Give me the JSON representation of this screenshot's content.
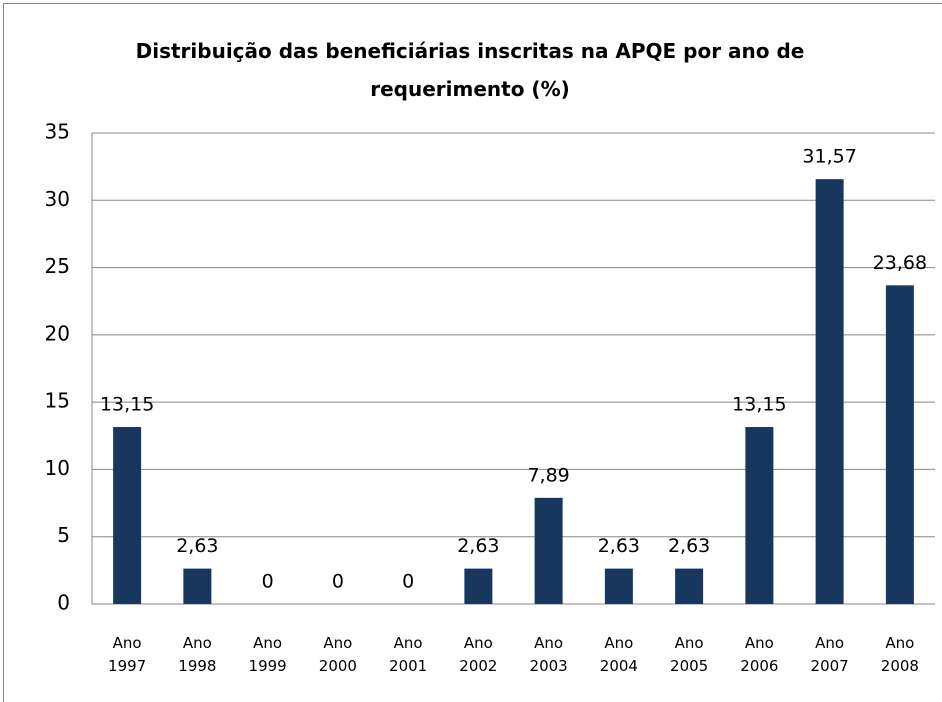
{
  "chart_data": {
    "type": "bar",
    "title": "Distribuição das beneficiárias inscritas na APQE por ano de requerimento (%)",
    "categories": [
      "Ano 1997",
      "Ano 1998",
      "Ano 1999",
      "Ano 2000",
      "Ano 2001",
      "Ano 2002",
      "Ano 2003",
      "Ano 2004",
      "Ano 2005",
      "Ano 2006",
      "Ano 2007",
      "Ano 2008"
    ],
    "values": [
      13.15,
      2.63,
      0,
      0,
      0,
      2.63,
      7.89,
      2.63,
      2.63,
      13.15,
      31.57,
      23.68
    ],
    "value_labels": [
      "13,15",
      "2,63",
      "0",
      "0",
      "0",
      "2,63",
      "7,89",
      "2,63",
      "2,63",
      "13,15",
      "31,57",
      "23,68"
    ],
    "color": "#17375e",
    "ylim": [
      0,
      35
    ],
    "yticks": [
      0,
      5,
      10,
      15,
      20,
      25,
      30,
      35
    ],
    "grid": true
  }
}
